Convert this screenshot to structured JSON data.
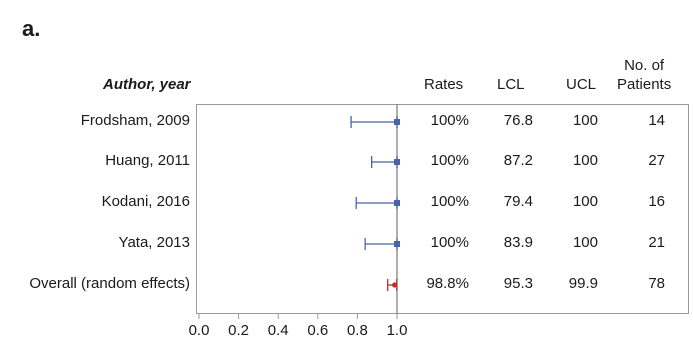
{
  "panel_label": "a.",
  "headers": {
    "author": "Author, year",
    "rates": "Rates",
    "lcl": "LCL",
    "ucl": "UCL",
    "patients_line1": "No. of",
    "patients_line2": "Patients"
  },
  "chart_data": {
    "type": "forest",
    "x_ticks": [
      "0.0",
      "0.2",
      "0.4",
      "0.6",
      "0.8",
      "1.0"
    ],
    "xlim": [
      0.0,
      1.0
    ],
    "reference_line": 1.0,
    "rows": [
      {
        "label": "Frodsham, 2009",
        "estimate": 1.0,
        "lower": 0.768,
        "upper": 1.0,
        "rate": "100%",
        "lcl": "76.8",
        "ucl": "100",
        "patients": "14",
        "kind": "study"
      },
      {
        "label": "Huang, 2011",
        "estimate": 1.0,
        "lower": 0.872,
        "upper": 1.0,
        "rate": "100%",
        "lcl": "87.2",
        "ucl": "100",
        "patients": "27",
        "kind": "study"
      },
      {
        "label": "Kodani, 2016",
        "estimate": 1.0,
        "lower": 0.794,
        "upper": 1.0,
        "rate": "100%",
        "lcl": "79.4",
        "ucl": "100",
        "patients": "16",
        "kind": "study"
      },
      {
        "label": "Yata, 2013",
        "estimate": 1.0,
        "lower": 0.839,
        "upper": 1.0,
        "rate": "100%",
        "lcl": "83.9",
        "ucl": "100",
        "patients": "21",
        "kind": "study"
      },
      {
        "label": "Overall (random effects)",
        "estimate": 0.988,
        "lower": 0.953,
        "upper": 0.999,
        "rate": "98.8%",
        "lcl": "95.3",
        "ucl": "99.9",
        "patients": "78",
        "kind": "overall"
      }
    ],
    "colors": {
      "study": "#4a62a8",
      "overall": "#b5342d",
      "axis": "#9a9a9a"
    }
  }
}
